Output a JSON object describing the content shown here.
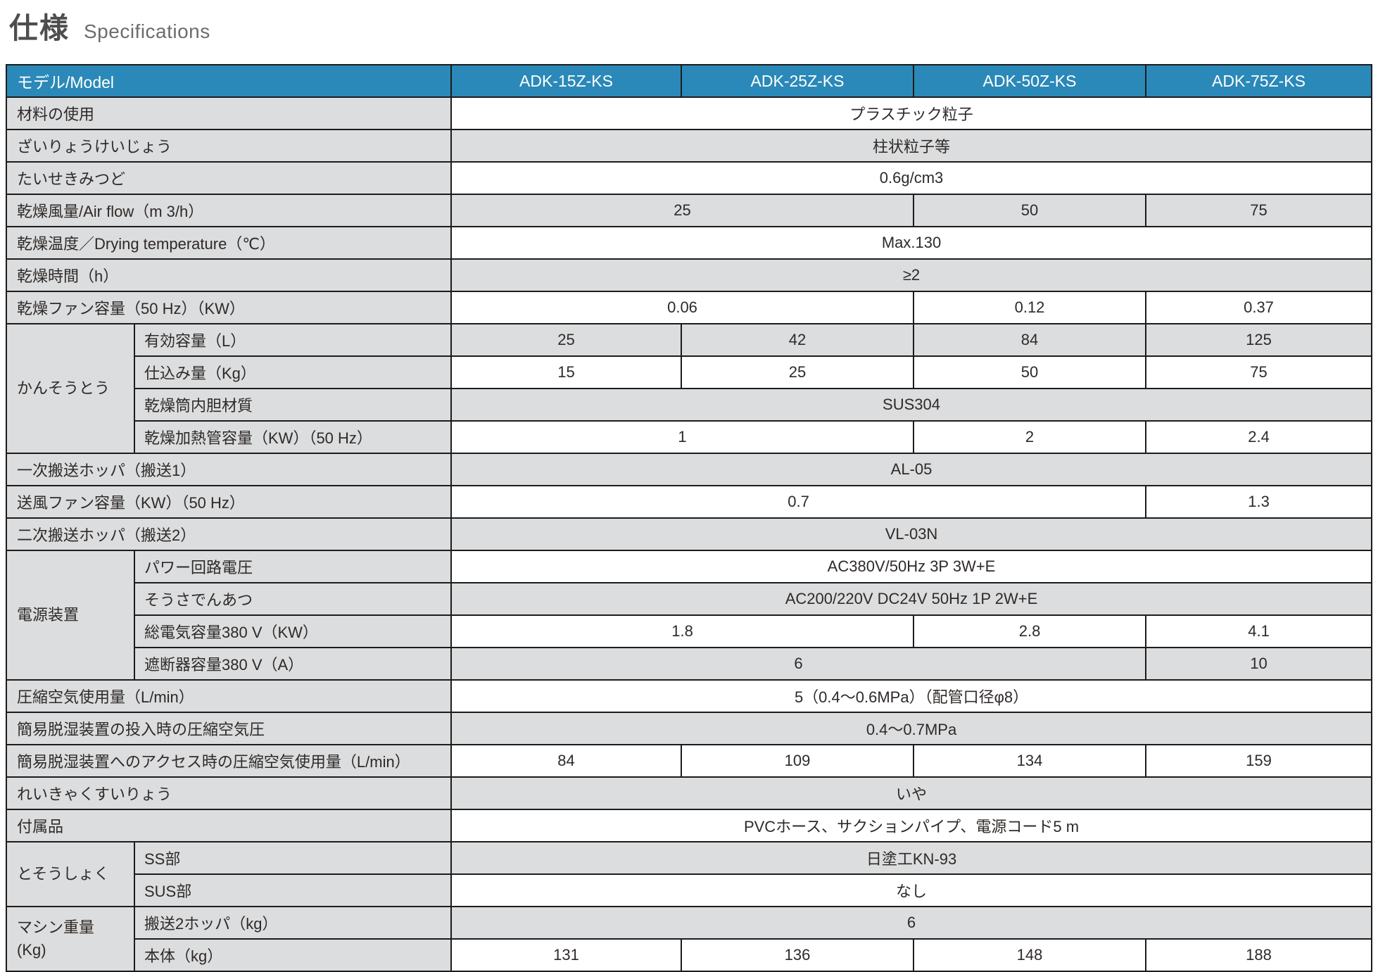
{
  "title": {
    "jp": "仕様",
    "en": "Specifications"
  },
  "colors": {
    "header_bg": "#2a89b8",
    "header_text": "#ffffff",
    "label_bg": "#dcddde",
    "row_alt_bg": "#dcddde",
    "row_bg": "#ffffff",
    "border": "#1c1c1c",
    "text": "#2e2a28",
    "title_jp": "#4d4d4d",
    "title_en": "#6c6c6c"
  },
  "table": {
    "corner_label": "モデル/Model",
    "models": [
      "ADK-15Z-KS",
      "ADK-25Z-KS",
      "ADK-50Z-KS",
      "ADK-75Z-KS"
    ],
    "rows": [
      {
        "label": "材料の使用",
        "cells": [
          {
            "text": "プラスチック粒子",
            "span": 4
          }
        ]
      },
      {
        "label": "ざいりょうけいじょう",
        "cells": [
          {
            "text": "柱状粒子等",
            "span": 4
          }
        ]
      },
      {
        "label": "たいせきみつど",
        "cells": [
          {
            "text": "0.6g/cm3",
            "span": 4
          }
        ]
      },
      {
        "label": "乾燥風量/Air flow（m 3/h）",
        "cells": [
          {
            "text": "25",
            "span": 2
          },
          {
            "text": "50",
            "span": 1
          },
          {
            "text": "75",
            "span": 1
          }
        ]
      },
      {
        "label": "乾燥温度／Drying temperature（℃）",
        "cells": [
          {
            "text": "Max.130",
            "span": 4
          }
        ]
      },
      {
        "label": "乾燥時間（h）",
        "cells": [
          {
            "text": "≥2",
            "span": 4
          }
        ]
      },
      {
        "label": "乾燥ファン容量（50 Hz）（KW）",
        "cells": [
          {
            "text": "0.06",
            "span": 2
          },
          {
            "text": "0.12",
            "span": 1
          },
          {
            "text": "0.37",
            "span": 1
          }
        ]
      },
      {
        "group": "かんそうとう",
        "group_rowspan": 4,
        "label": "有効容量（L）",
        "cells": [
          {
            "text": "25",
            "span": 1
          },
          {
            "text": "42",
            "span": 1
          },
          {
            "text": "84",
            "span": 1
          },
          {
            "text": "125",
            "span": 1
          }
        ]
      },
      {
        "in_group": true,
        "label": "仕込み量（Kg）",
        "cells": [
          {
            "text": "15",
            "span": 1
          },
          {
            "text": "25",
            "span": 1
          },
          {
            "text": "50",
            "span": 1
          },
          {
            "text": "75",
            "span": 1
          }
        ]
      },
      {
        "in_group": true,
        "label": "乾燥筒内胆材質",
        "cells": [
          {
            "text": "SUS304",
            "span": 4
          }
        ]
      },
      {
        "in_group": true,
        "label": "乾燥加熱管容量（KW）（50 Hz）",
        "cells": [
          {
            "text": "1",
            "span": 2
          },
          {
            "text": "2",
            "span": 1
          },
          {
            "text": "2.4",
            "span": 1
          }
        ]
      },
      {
        "label": "一次搬送ホッパ（搬送1）",
        "cells": [
          {
            "text": "AL-05",
            "span": 4
          }
        ]
      },
      {
        "label": "送風ファン容量（KW）（50 Hz）",
        "cells": [
          {
            "text": "0.7",
            "span": 3
          },
          {
            "text": "1.3",
            "span": 1
          }
        ]
      },
      {
        "label": "二次搬送ホッパ（搬送2）",
        "cells": [
          {
            "text": "VL-03N",
            "span": 4
          }
        ]
      },
      {
        "group": "電源装置",
        "group_rowspan": 4,
        "label": "パワー回路電圧",
        "cells": [
          {
            "text": "AC380V/50Hz 3P 3W+E",
            "span": 4
          }
        ]
      },
      {
        "in_group": true,
        "label": "そうさでんあつ",
        "cells": [
          {
            "text": "AC200/220V DC24V 50Hz 1P 2W+E",
            "span": 4
          }
        ]
      },
      {
        "in_group": true,
        "label": "総電気容量380 V（KW）",
        "cells": [
          {
            "text": "1.8",
            "span": 2
          },
          {
            "text": "2.8",
            "span": 1
          },
          {
            "text": "4.1",
            "span": 1
          }
        ]
      },
      {
        "in_group": true,
        "label": "遮断器容量380 V（A）",
        "cells": [
          {
            "text": "6",
            "span": 3
          },
          {
            "text": "10",
            "span": 1
          }
        ]
      },
      {
        "label": "圧縮空気使用量（L/min）",
        "cells": [
          {
            "text": "5（0.4〜0.6MPa）（配管口径φ8）",
            "span": 4
          }
        ]
      },
      {
        "label": "簡易脱湿装置の投入時の圧縮空気圧",
        "cells": [
          {
            "text": "0.4〜0.7MPa",
            "span": 4
          }
        ]
      },
      {
        "label": "簡易脱湿装置へのアクセス時の圧縮空気使用量（L/min）",
        "cells": [
          {
            "text": "84",
            "span": 1
          },
          {
            "text": "109",
            "span": 1
          },
          {
            "text": "134",
            "span": 1
          },
          {
            "text": "159",
            "span": 1
          }
        ]
      },
      {
        "label": "れいきゃくすいりょう",
        "cells": [
          {
            "text": "いや",
            "span": 4
          }
        ]
      },
      {
        "label": "付属品",
        "cells": [
          {
            "text": "PVCホース、サクションパイプ、電源コード5 m",
            "span": 4
          }
        ]
      },
      {
        "group": "とそうしょく",
        "group_rowspan": 2,
        "label": "SS部",
        "cells": [
          {
            "text": "日塗工KN-93",
            "span": 4
          }
        ]
      },
      {
        "in_group": true,
        "label": "SUS部",
        "cells": [
          {
            "text": "なし",
            "span": 4
          }
        ]
      },
      {
        "group": "マシン重量\n(Kg)",
        "group_rowspan": 2,
        "label": "搬送2ホッパ（kg）",
        "cells": [
          {
            "text": "6",
            "span": 4
          }
        ]
      },
      {
        "in_group": true,
        "label": "本体（kg）",
        "cells": [
          {
            "text": "131",
            "span": 1
          },
          {
            "text": "136",
            "span": 1
          },
          {
            "text": "148",
            "span": 1
          },
          {
            "text": "188",
            "span": 1
          }
        ]
      }
    ]
  }
}
